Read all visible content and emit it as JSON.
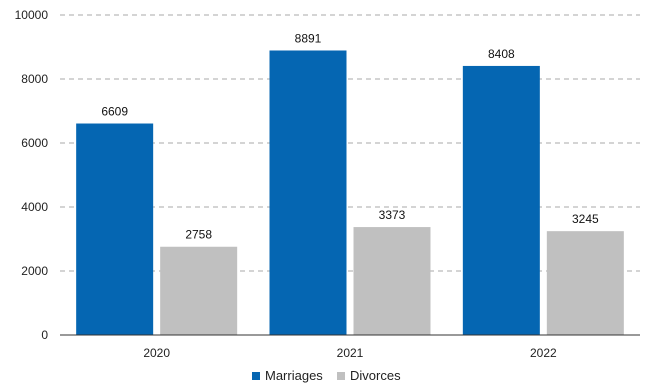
{
  "chart_data": {
    "type": "bar",
    "title": "",
    "xlabel": "",
    "ylabel": "",
    "categories": [
      "2020",
      "2021",
      "2022"
    ],
    "series": [
      {
        "name": "Marriages",
        "values": [
          6609,
          8891,
          8408
        ],
        "color": "#0566b2"
      },
      {
        "name": "Divorces",
        "values": [
          2758,
          3373,
          3245
        ],
        "color": "#c0c0c0"
      }
    ],
    "ylim": [
      0,
      10000
    ],
    "yticks": [
      0,
      2000,
      4000,
      6000,
      8000,
      10000
    ],
    "grid": "horizontal-dashed",
    "legend_position": "bottom-center",
    "data_labels": true
  }
}
